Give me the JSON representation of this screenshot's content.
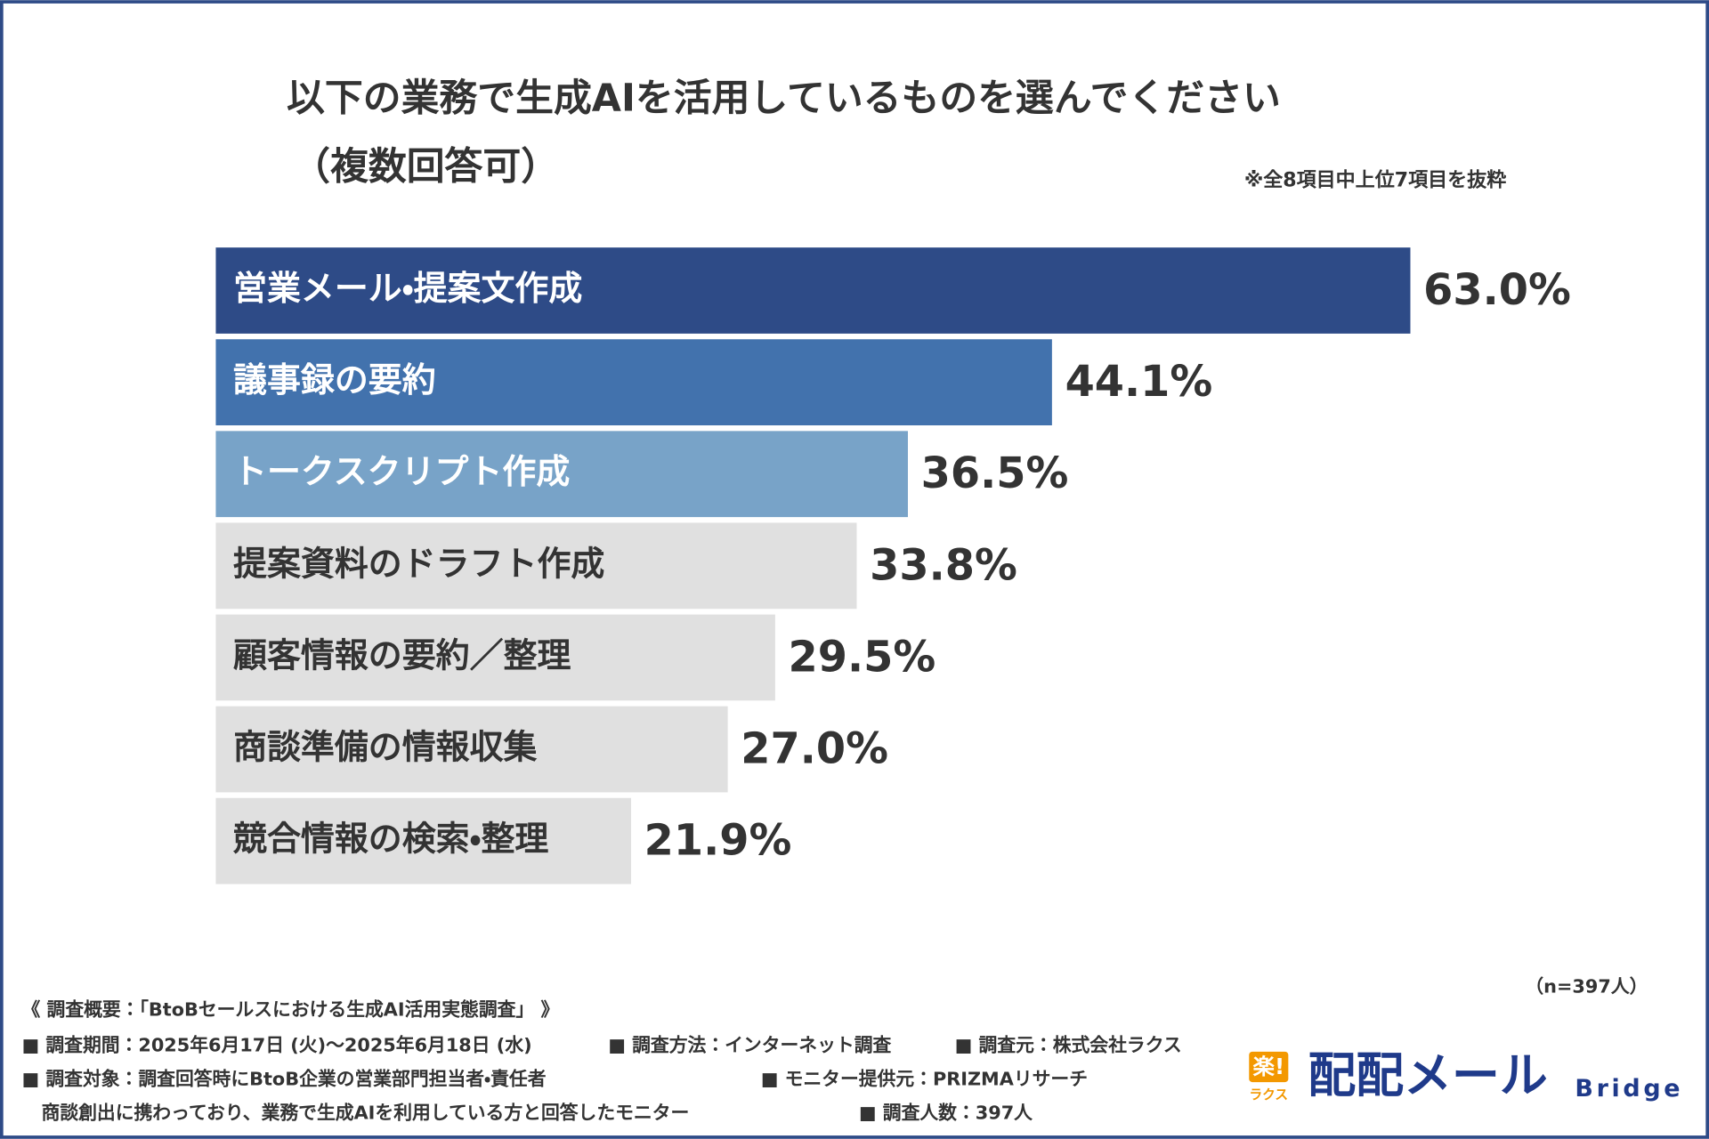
{
  "chart_data": {
    "type": "bar",
    "orientation": "horizontal",
    "title": [
      "以下の業務で生成AIを活用しているものを選んでください",
      "（複数回答可）"
    ],
    "note": "※全8項目中上位7項目を抜粋",
    "sample": "（n=397人）",
    "categories": [
      "営業メール・提案文作成",
      "議事録の要約",
      "トークスクリプト作成",
      "提案資料のドラフト作成",
      "顧客情報の要約／整理",
      "商談準備の情報収集",
      "競合情報の検索・整理"
    ],
    "values": [
      63.0,
      44.1,
      36.5,
      33.8,
      29.5,
      27.0,
      21.9
    ],
    "value_labels": [
      "63.0%",
      "44.1%",
      "36.5%",
      "33.8%",
      "29.5%",
      "27.0%",
      "21.9%"
    ],
    "colors": [
      "#2e4b87",
      "#4272ad",
      "#78a3c8",
      "#e0e0e0",
      "#e0e0e0",
      "#e0e0e0",
      "#e0e0e0"
    ]
  },
  "footer": {
    "heading": "《 調査概要：「BtoBセールスにおける生成AI活用実態調査」 》",
    "period": "■ 調査期間：2025年6月17日 (火)～2025年6月18日 (水)",
    "method": "■ 調査方法：インターネット調査",
    "source": "■ 調査元：株式会社ラクス",
    "target": "■ 調査対象：調査回答時にBtoB企業の営業部門担当者・責任者",
    "target_cont": "商談創出に携わっており、業務で生成AIを利用している方と回答したモニター",
    "monitor": "■ モニター提供元：PRIZMAリサーチ",
    "count": "■ 調査人数：397人"
  },
  "logo": {
    "mark": "楽!",
    "mark_sub": "ラクス",
    "name": "配配メール",
    "sub": "Bridge"
  }
}
